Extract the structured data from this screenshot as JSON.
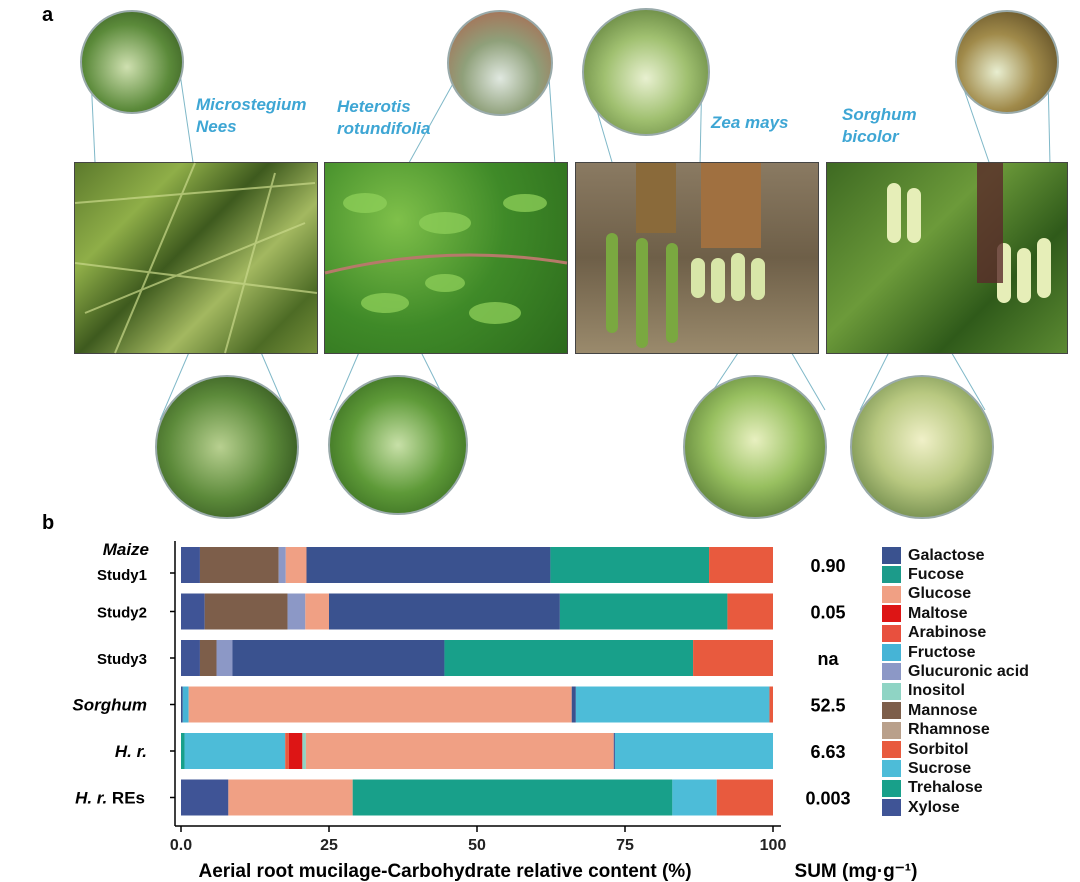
{
  "panel_a": {
    "label": "a",
    "species": [
      {
        "line1": "Microstegium",
        "line2": "Nees"
      },
      {
        "line1": "Heterotis",
        "line2": "rotundifolia"
      },
      {
        "line1": "Zea mays",
        "line2": ""
      },
      {
        "line1": "Sorghum",
        "line2": "bicolor"
      }
    ]
  },
  "panel_b": {
    "label": "b"
  },
  "chart_data": {
    "type": "bar",
    "orientation": "horizontal",
    "stacked": true,
    "xlabel": "Aerial root mucilage-Carbohydrate relative content (%)",
    "xlim": [
      0,
      100
    ],
    "xticks": [
      "0.0",
      "25",
      "50",
      "75",
      "100"
    ],
    "sum_label": "SUM (mg·g⁻¹)",
    "rows": [
      {
        "group": "Maize",
        "label": "Study1",
        "sum": "0.90",
        "segments": [
          [
            "Xylose",
            3.2
          ],
          [
            "Mannose",
            13.3
          ],
          [
            "Glucuronic acid",
            1.2
          ],
          [
            "Glucose",
            3.5
          ],
          [
            "Galactose",
            41.2
          ],
          [
            "Trehalose",
            26.8
          ],
          [
            "Sorbitol",
            10.8
          ]
        ]
      },
      {
        "group": "",
        "label": "Study2",
        "sum": "0.05",
        "segments": [
          [
            "Xylose",
            4.0
          ],
          [
            "Mannose",
            14.0
          ],
          [
            "Glucuronic acid",
            3.0
          ],
          [
            "Glucose",
            4.0
          ],
          [
            "Galactose",
            39.0
          ],
          [
            "Trehalose",
            28.3
          ],
          [
            "Sorbitol",
            7.7
          ]
        ]
      },
      {
        "group": "",
        "label": "Study3",
        "sum": "na",
        "segments": [
          [
            "Xylose",
            3.2
          ],
          [
            "Mannose",
            2.8
          ],
          [
            "Glucuronic acid",
            2.7
          ],
          [
            "Galactose",
            35.8
          ],
          [
            "Trehalose",
            42.0
          ],
          [
            "Sorbitol",
            13.5
          ]
        ]
      },
      {
        "group": "",
        "label": "Sorghum",
        "sum": "52.5",
        "segments": [
          [
            "Galactose",
            0.3
          ],
          [
            "Fructose",
            1.0
          ],
          [
            "Glucose",
            64.7
          ],
          [
            "Galactose",
            0.7
          ],
          [
            "Sucrose",
            32.7
          ],
          [
            "Sorbitol",
            0.6
          ]
        ]
      },
      {
        "group": "",
        "label": "H. r.",
        "sum": "6.63",
        "segments": [
          [
            "Trehalose",
            0.6
          ],
          [
            "Sucrose",
            17.0
          ],
          [
            "Sorbitol",
            0.6
          ],
          [
            "Maltose",
            2.3
          ],
          [
            "Inositol",
            0.6
          ],
          [
            "Glucose",
            52.0
          ],
          [
            "Xylose",
            0.2
          ],
          [
            "Sucrose",
            26.7
          ]
        ]
      },
      {
        "group": "",
        "label": "H. r. REs",
        "sum": "0.003",
        "segments": [
          [
            "Xylose",
            8.0
          ],
          [
            "Glucose",
            21.0
          ],
          [
            "Trehalose",
            54.0
          ],
          [
            "Sucrose",
            7.5
          ],
          [
            "Sorbitol",
            9.5
          ]
        ]
      }
    ],
    "legend": [
      {
        "name": "Galactose",
        "color": "#3a528f"
      },
      {
        "name": "Fucose",
        "color": "#1c9b8a"
      },
      {
        "name": "Glucose",
        "color": "#f0a084"
      },
      {
        "name": "Maltose",
        "color": "#dd1515"
      },
      {
        "name": "Arabinose",
        "color": "#e8503e"
      },
      {
        "name": "Fructose",
        "color": "#46b4d6"
      },
      {
        "name": "Glucuronic acid",
        "color": "#8c98c6"
      },
      {
        "name": "Inositol",
        "color": "#8fd4c4"
      },
      {
        "name": "Mannose",
        "color": "#7d5e4a"
      },
      {
        "name": "Rhamnose",
        "color": "#b9a08b"
      },
      {
        "name": "Sorbitol",
        "color": "#e85a3e"
      },
      {
        "name": "Sucrose",
        "color": "#4dbcd8"
      },
      {
        "name": "Trehalose",
        "color": "#18a08a"
      },
      {
        "name": "Xylose",
        "color": "#3f5496"
      }
    ],
    "legend_placement": "right",
    "grid": false
  }
}
